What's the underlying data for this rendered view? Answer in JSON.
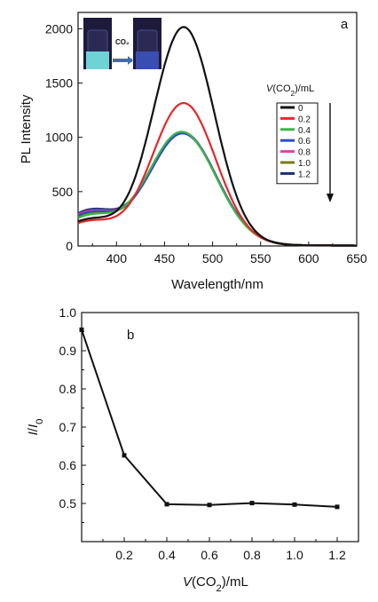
{
  "chart_data": [
    {
      "type": "line",
      "panel_label": "a",
      "xlabel": "Wavelength/nm",
      "ylabel": "PL Intensity",
      "xlim": [
        360,
        650
      ],
      "ylim": [
        0,
        2150
      ],
      "xticks": [
        400,
        450,
        500,
        550,
        600,
        650
      ],
      "yticks": [
        0,
        500,
        1000,
        1500,
        2000
      ],
      "grid": false,
      "legend": {
        "title": "V(CO2)/mL",
        "title_parts": [
          "V",
          "(CO",
          "2",
          ")/mL"
        ],
        "placement": "right",
        "arrow": true
      },
      "inset": {
        "arrow_label": "CO₂",
        "description_free": true
      },
      "series": [
        {
          "name": "0",
          "color": "#111111",
          "peak": 2000,
          "center": 470,
          "width": 45,
          "shoulder": 0.1
        },
        {
          "name": "0.2",
          "color": "#e8262a",
          "peak": 1300,
          "center": 470,
          "width": 47,
          "shoulder": 0.14
        },
        {
          "name": "0.4",
          "color": "#3cb64a",
          "peak": 1035,
          "center": 468,
          "width": 50,
          "shoulder": 0.22
        },
        {
          "name": "0.6",
          "color": "#2a4fbf",
          "peak": 1020,
          "center": 469,
          "width": 50,
          "shoulder": 0.25
        },
        {
          "name": "0.8",
          "color": "#e0439a",
          "peak": 1020,
          "center": 469,
          "width": 50,
          "shoulder": 0.26
        },
        {
          "name": "1.0",
          "color": "#7a7a1a",
          "peak": 1025,
          "center": 469,
          "width": 50,
          "shoulder": 0.24
        },
        {
          "name": "1.2",
          "color": "#1e2a78",
          "peak": 1030,
          "center": 469,
          "width": 50,
          "shoulder": 0.27
        }
      ]
    },
    {
      "type": "line",
      "panel_label": "b",
      "xlabel": "V(CO2)/mL",
      "xlabel_parts": [
        "V",
        "(CO",
        "2",
        ")/mL"
      ],
      "ylabel": "I/I0",
      "ylabel_parts": [
        "I",
        "/",
        "I",
        "0"
      ],
      "xlim": [
        0,
        1.3
      ],
      "ylim": [
        0.4,
        1.0
      ],
      "xticks": [
        0.2,
        0.4,
        0.6,
        0.8,
        1.0,
        1.2
      ],
      "xtick_labels": [
        "0.2",
        "0.4",
        "0.6",
        "0.8",
        "1.0",
        "1.2"
      ],
      "yticks": [
        0.5,
        0.6,
        0.7,
        0.8,
        0.9,
        1.0
      ],
      "ytick_labels": [
        "0.5",
        "0.6",
        "0.7",
        "0.8",
        "0.9",
        "1.0"
      ],
      "grid": false,
      "series": [
        {
          "x": [
            0,
            0.2,
            0.4,
            0.6,
            0.8,
            1.0,
            1.2
          ],
          "y": [
            0.955,
            0.626,
            0.498,
            0.496,
            0.501,
            0.497,
            0.491
          ],
          "color": "#111111",
          "marker": "square"
        }
      ]
    }
  ]
}
